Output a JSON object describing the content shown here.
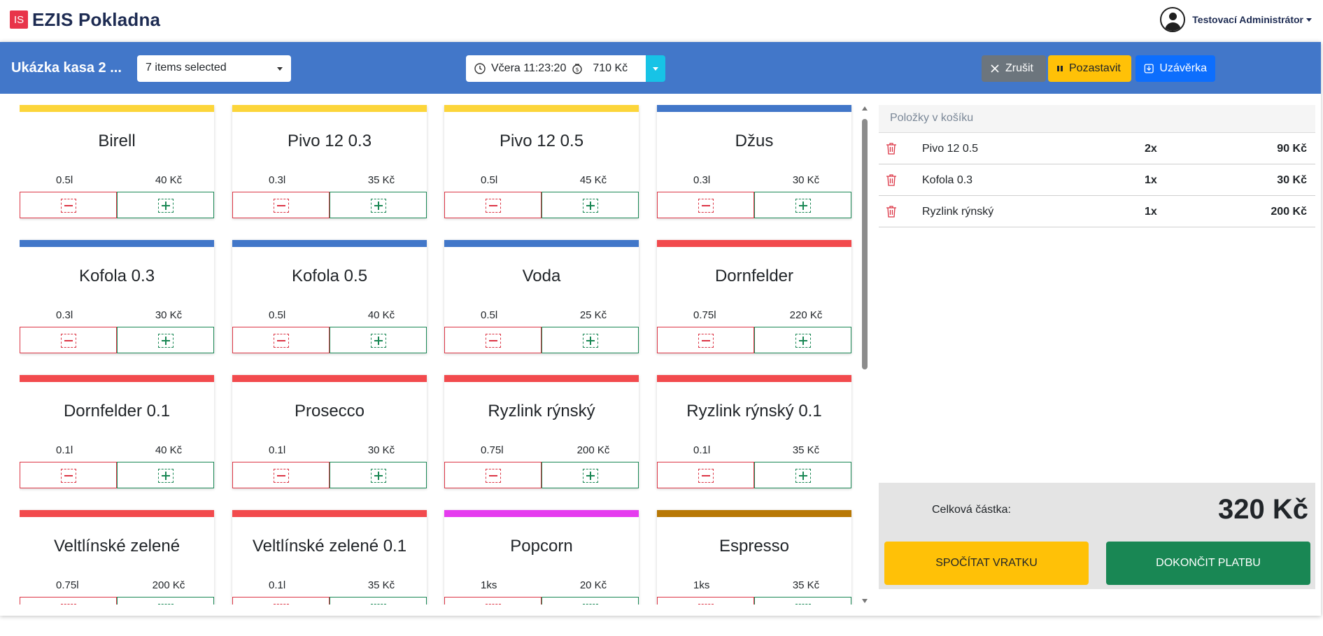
{
  "app": {
    "logo_text": "IS",
    "title": "EZIS Pokladna"
  },
  "user": {
    "name": "Testovací Administrátor"
  },
  "toolbar": {
    "register_name": "Ukázka kasa 2 ...",
    "category_filter": "7 items selected",
    "shift": {
      "opened": "Včera 11:23:20",
      "cash": "710 Kč"
    },
    "cancel_label": "Zrušit",
    "pause_label": "Pozastavit",
    "close_label": "Uzávěrka"
  },
  "products": [
    {
      "name": "Birell",
      "volume": "0.5l",
      "price": "40 Kč",
      "color": "#fcd53a"
    },
    {
      "name": "Pivo 12 0.3",
      "volume": "0.3l",
      "price": "35 Kč",
      "color": "#fcd53a"
    },
    {
      "name": "Pivo 12 0.5",
      "volume": "0.5l",
      "price": "45 Kč",
      "color": "#fcd53a"
    },
    {
      "name": "Džus",
      "volume": "0.3l",
      "price": "30 Kč",
      "color": "#4277c9"
    },
    {
      "name": "Kofola 0.3",
      "volume": "0.3l",
      "price": "30 Kč",
      "color": "#4277c9"
    },
    {
      "name": "Kofola 0.5",
      "volume": "0.5l",
      "price": "40 Kč",
      "color": "#4277c9"
    },
    {
      "name": "Voda",
      "volume": "0.5l",
      "price": "25 Kč",
      "color": "#4277c9"
    },
    {
      "name": "Dornfelder",
      "volume": "0.75l",
      "price": "220 Kč",
      "color": "#f24a4d"
    },
    {
      "name": "Dornfelder 0.1",
      "volume": "0.1l",
      "price": "40 Kč",
      "color": "#f24a4d"
    },
    {
      "name": "Prosecco",
      "volume": "0.1l",
      "price": "30 Kč",
      "color": "#f24a4d"
    },
    {
      "name": "Ryzlink rýnský",
      "volume": "0.75l",
      "price": "200 Kč",
      "color": "#f24a4d"
    },
    {
      "name": "Ryzlink rýnský 0.1",
      "volume": "0.1l",
      "price": "35 Kč",
      "color": "#f24a4d"
    },
    {
      "name": "Veltlínské zelené",
      "volume": "0.75l",
      "price": "200 Kč",
      "color": "#f24a4d"
    },
    {
      "name": "Veltlínské zelené 0.1",
      "volume": "0.1l",
      "price": "35 Kč",
      "color": "#f24a4d"
    },
    {
      "name": "Popcorn",
      "volume": "1ks",
      "price": "20 Kč",
      "color": "#e53bef"
    },
    {
      "name": "Espresso",
      "volume": "1ks",
      "price": "35 Kč",
      "color": "#b87805"
    }
  ],
  "cart": {
    "header": "Položky v košíku",
    "items": [
      {
        "name": "Pivo 12 0.5",
        "qty": "2x",
        "total": "90 Kč"
      },
      {
        "name": "Kofola 0.3",
        "qty": "1x",
        "total": "30 Kč"
      },
      {
        "name": "Ryzlink rýnský",
        "qty": "1x",
        "total": "200 Kč"
      }
    ],
    "total_label": "Celková částka:",
    "total_value": "320 Kč",
    "change_label": "SPOČÍTAT VRATKU",
    "finish_label": "DOKONČIT PLATBU"
  }
}
